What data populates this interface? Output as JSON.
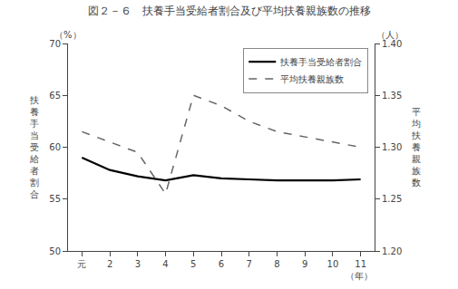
{
  "chart_data": {
    "type": "line",
    "title": "図２－６　扶養手当受給者割合及び平均扶養親族数の推移",
    "categories": [
      "元",
      "2",
      "3",
      "4",
      "5",
      "6",
      "7",
      "8",
      "9",
      "10",
      "11"
    ],
    "x_unit": "（年）",
    "y_label": "扶養手当受給者割合",
    "y_unit": "（%）",
    "y2_label": "平均扶養親族数",
    "y2_unit": "（人）",
    "ylim": [
      50,
      70
    ],
    "yticks": [
      50,
      55,
      60,
      65,
      70
    ],
    "y2lim": [
      1.2,
      1.4
    ],
    "y2ticks": [
      {
        "value": 1.2,
        "label": "1.20"
      },
      1.25,
      {
        "value": 1.3,
        "label": "1.30"
      },
      1.35,
      {
        "value": 1.4,
        "label": "1.40"
      }
    ],
    "grid": false,
    "legend": "upper right",
    "series": [
      {
        "name": "扶養手当受給者割合",
        "color": "#000000",
        "line_style": "solid",
        "values": [
          59.0,
          57.8,
          57.2,
          56.8,
          57.3,
          57.0,
          56.9,
          56.8,
          56.8,
          56.8,
          56.9
        ]
      },
      {
        "name": "平均扶養親族数",
        "color": "#666666",
        "line_style": "dashed",
        "axis": "y2",
        "values": [
          1.315,
          1.305,
          1.295,
          1.255,
          1.35,
          1.34,
          1.325,
          1.315,
          1.31,
          1.305,
          1.3
        ]
      }
    ]
  }
}
